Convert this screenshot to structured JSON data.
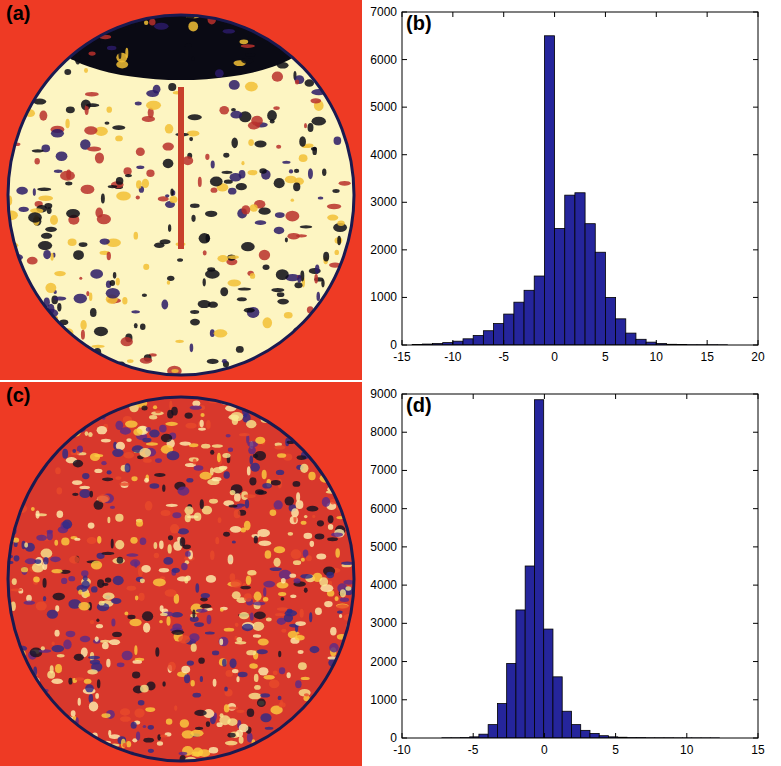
{
  "images": [
    {
      "label": "(a)"
    },
    {
      "label": "(c)"
    }
  ],
  "chart_data": [
    {
      "type": "histogram",
      "title": "(b)",
      "color": "#25259c",
      "bins": [
        -14,
        -13,
        -12,
        -11,
        -10,
        -9,
        -8,
        -7,
        -6,
        -5,
        -4,
        -3,
        -2,
        -1,
        0,
        1,
        2,
        3,
        4,
        5,
        6,
        7,
        8,
        9,
        10,
        11,
        12,
        13,
        14,
        15,
        16,
        17
      ],
      "counts": [
        10,
        20,
        30,
        50,
        80,
        130,
        200,
        300,
        450,
        650,
        900,
        1150,
        1450,
        6500,
        2450,
        3150,
        3200,
        2550,
        1950,
        1000,
        550,
        250,
        120,
        60,
        30,
        15,
        10,
        5,
        5,
        5,
        3
      ],
      "xlim": [
        -15,
        20
      ],
      "xticks": [
        -15,
        -10,
        -5,
        0,
        5,
        10,
        15,
        20
      ],
      "ylim": [
        0,
        7000
      ],
      "yticks": [
        0,
        1000,
        2000,
        3000,
        4000,
        5000,
        6000,
        7000
      ]
    },
    {
      "type": "histogram",
      "title": "(d)",
      "color": "#25259c",
      "bins": [
        -7.2,
        -6.55,
        -5.9,
        -5.25,
        -4.6,
        -3.95,
        -3.3,
        -2.65,
        -2,
        -1.35,
        -0.7,
        -0.05,
        0.6,
        1.25,
        1.9,
        2.55,
        3.2,
        3.85,
        4.5,
        5.15,
        5.8,
        6.45,
        7.1,
        7.75,
        8.4,
        9.05,
        9.7,
        10.35,
        11,
        11.65,
        12.3
      ],
      "counts": [
        5,
        5,
        10,
        30,
        100,
        350,
        900,
        1950,
        3350,
        4500,
        8850,
        2850,
        1600,
        700,
        350,
        200,
        120,
        60,
        30,
        20,
        10,
        10,
        5,
        5,
        5,
        3,
        3,
        2,
        2,
        2
      ],
      "xlim": [
        -10,
        15
      ],
      "xticks": [
        -10,
        -5,
        0,
        5,
        10,
        15
      ],
      "ylim": [
        0,
        9000
      ],
      "yticks": [
        0,
        1000,
        2000,
        3000,
        4000,
        5000,
        6000,
        7000,
        8000,
        9000
      ]
    }
  ]
}
